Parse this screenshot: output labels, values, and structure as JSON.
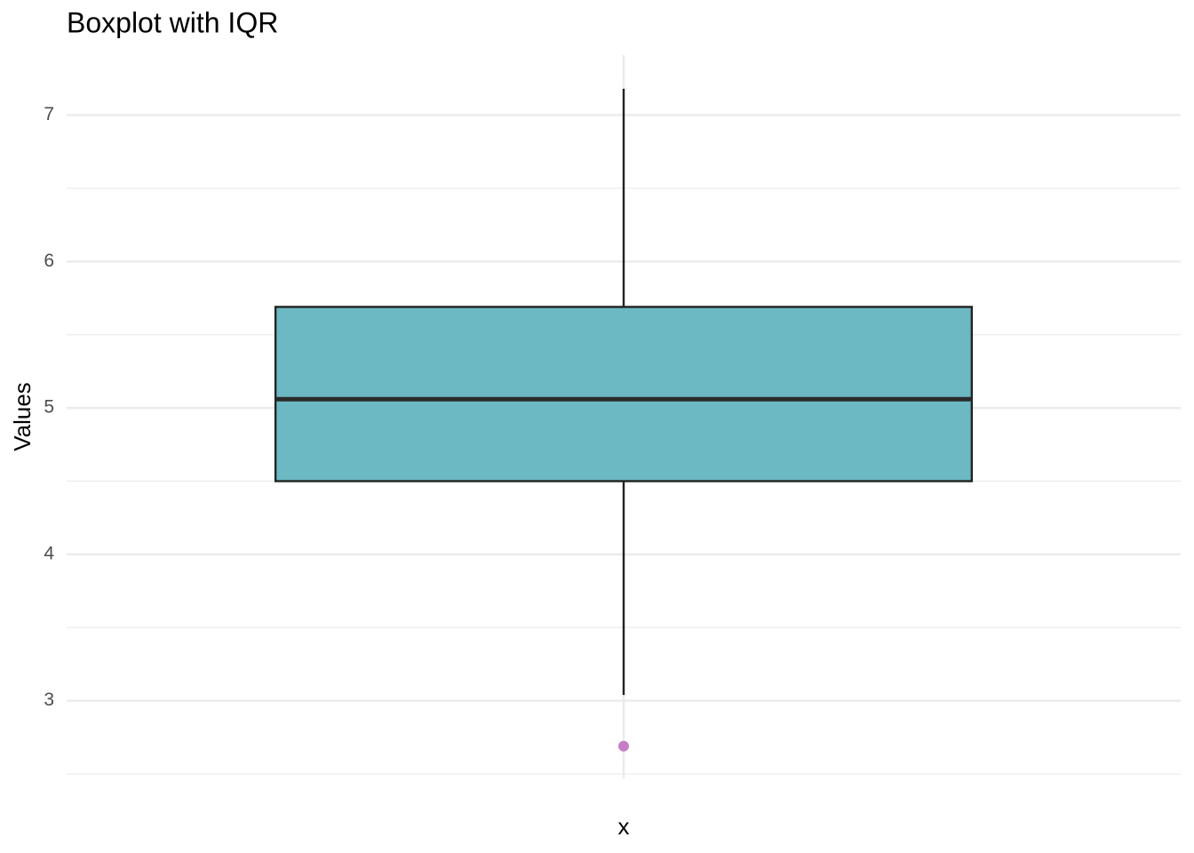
{
  "chart_data": {
    "type": "box",
    "title": "Boxplot with IQR",
    "x_label": "x",
    "y_label": "Values",
    "categories": [
      null
    ],
    "boxes": [
      {
        "whisker_low": 3.04,
        "q1": 4.5,
        "median": 5.06,
        "q3": 5.69,
        "whisker_high": 7.18,
        "outliers": [
          2.69
        ]
      }
    ],
    "color": "#6cb8c3",
    "outlier_color": "#c57ec5",
    "ylim": [
      2.47,
      7.41
    ],
    "yticks": [
      3,
      4,
      5,
      6,
      7
    ],
    "y_minor_ticks": [
      2.5,
      3.5,
      4.5,
      5.5,
      6.5
    ],
    "grid": true
  }
}
